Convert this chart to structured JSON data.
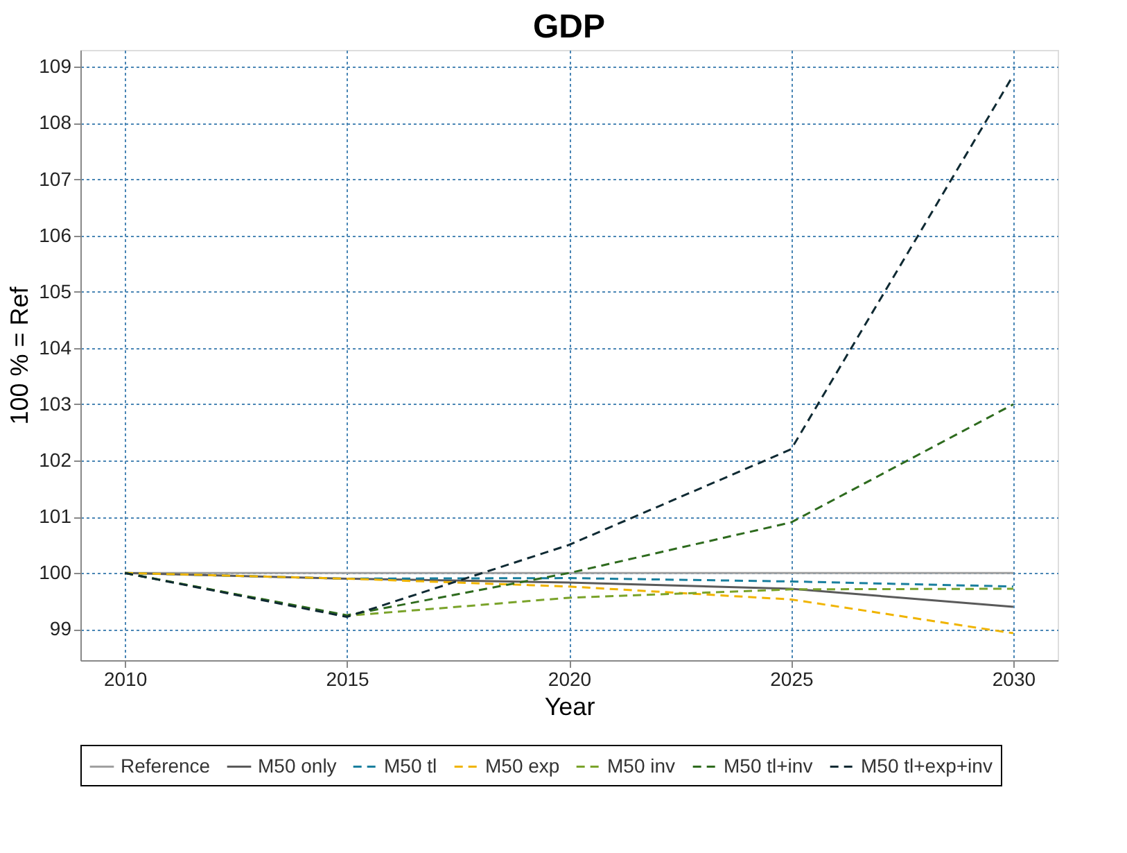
{
  "chart_data": {
    "type": "line",
    "title": "GDP",
    "xlabel": "Year",
    "ylabel": "100 % = Ref",
    "x": [
      2010,
      2015,
      2020,
      2025,
      2030
    ],
    "xlim": [
      2009,
      2031
    ],
    "xticks": [
      2010,
      2015,
      2020,
      2025,
      2030
    ],
    "ylim": [
      98.45,
      109.3
    ],
    "yticks": [
      99,
      100,
      101,
      102,
      103,
      104,
      105,
      106,
      107,
      108,
      109
    ],
    "grid": true,
    "legend": "bottom",
    "marker": "none",
    "series": [
      {
        "name": "Reference",
        "color": "#a0a0a0",
        "line_style": "solid",
        "values": [
          100,
          100,
          100,
          100,
          100
        ]
      },
      {
        "name": "M50 only",
        "color": "#5a5a5a",
        "line_style": "solid",
        "values": [
          100,
          99.9,
          99.83,
          99.72,
          99.4
        ]
      },
      {
        "name": "M50 tl",
        "color": "#1a7f9e",
        "line_style": "dashed",
        "values": [
          100,
          99.9,
          99.91,
          99.85,
          99.76
        ]
      },
      {
        "name": "M50 exp",
        "color": "#f0b400",
        "line_style": "dashed",
        "values": [
          100,
          99.9,
          99.76,
          99.53,
          98.93
        ]
      },
      {
        "name": "M50 inv",
        "color": "#7aa32a",
        "line_style": "dashed",
        "values": [
          100,
          99.24,
          99.56,
          99.71,
          99.72
        ]
      },
      {
        "name": "M50 tl+inv",
        "color": "#2e6b1e",
        "line_style": "dashed",
        "values": [
          100,
          99.25,
          100.0,
          100.9,
          103.0
        ]
      },
      {
        "name": "M50 tl+exp+inv",
        "color": "#0f2a33",
        "line_style": "dashed",
        "values": [
          100,
          99.22,
          100.5,
          102.2,
          108.85
        ]
      }
    ]
  }
}
